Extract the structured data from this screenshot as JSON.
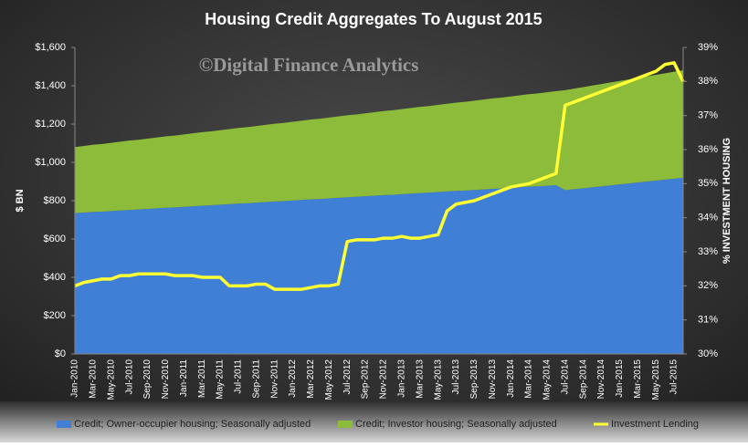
{
  "chart_data": {
    "type": "stacked-area-line",
    "title": "Housing Credit Aggregates To August 2015",
    "watermark": "©Digital Finance Analytics",
    "y_label": "$ BN",
    "y2_label": "% INVESTMENT HOUSING",
    "categories": [
      "Jan-2010",
      null,
      "Mar-2010",
      null,
      "May-2010",
      null,
      "Jul-2010",
      null,
      "Sep-2010",
      null,
      "Nov-2010",
      null,
      "Jan-2011",
      null,
      "Mar-2011",
      null,
      "May-2011",
      null,
      "Jul-2011",
      null,
      "Sep-2011",
      null,
      "Nov-2011",
      null,
      "Jan-2012",
      null,
      "Mar-2012",
      null,
      "May-2012",
      null,
      "Jul-2012",
      null,
      "Sep-2012",
      null,
      "Nov-2012",
      null,
      "Jan-2013",
      null,
      "Mar-2013",
      null,
      "May-2013",
      null,
      "Jul-2013",
      null,
      "Sep-2013",
      null,
      "Nov-2013",
      null,
      "Jan-2014",
      null,
      "Mar-2014",
      null,
      "May-2014",
      null,
      "Jul-2014",
      null,
      "Sep-2014",
      null,
      "Nov-2014",
      null,
      "Jan-2015",
      null,
      "Mar-2015",
      null,
      "May-2015",
      null,
      "Jul-2015",
      null
    ],
    "series": [
      {
        "name": "Credit; Owner-occupier housing; Seasonally adjusted",
        "color": "#3f7fd6",
        "kind": "area",
        "values": [
          735,
          738,
          741,
          743,
          746,
          749,
          752,
          754,
          757,
          760,
          763,
          765,
          768,
          771,
          774,
          776,
          779,
          782,
          785,
          787,
          790,
          793,
          796,
          798,
          801,
          804,
          807,
          809,
          812,
          815,
          818,
          820,
          823,
          826,
          829,
          831,
          834,
          837,
          840,
          842,
          845,
          848,
          851,
          853,
          856,
          859,
          862,
          864,
          867,
          870,
          873,
          875,
          878,
          881,
          855,
          860,
          865,
          870,
          875,
          880,
          885,
          890,
          895,
          900,
          905,
          910,
          915,
          920
        ]
      },
      {
        "name": "Credit; Investor housing; Seasonally adjusted",
        "color": "#8cbc3a",
        "kind": "area",
        "values": [
          345,
          348,
          351,
          353,
          356,
          359,
          362,
          364,
          367,
          370,
          373,
          375,
          378,
          381,
          384,
          386,
          389,
          392,
          395,
          397,
          400,
          403,
          406,
          408,
          411,
          414,
          417,
          419,
          422,
          425,
          428,
          430,
          433,
          436,
          439,
          441,
          444,
          447,
          450,
          452,
          455,
          458,
          461,
          463,
          466,
          469,
          472,
          474,
          477,
          480,
          483,
          485,
          488,
          491,
          522,
          525,
          528,
          531,
          534,
          537,
          540,
          543,
          546,
          549,
          552,
          555,
          558,
          561
        ]
      },
      {
        "name": "Investment Lending",
        "color": "#ffff33",
        "kind": "line",
        "axis": "y2",
        "values": [
          32.0,
          32.1,
          32.15,
          32.2,
          32.2,
          32.3,
          32.3,
          32.35,
          32.35,
          32.35,
          32.35,
          32.3,
          32.3,
          32.3,
          32.25,
          32.25,
          32.25,
          32.0,
          32.0,
          32.0,
          32.05,
          32.05,
          31.9,
          31.9,
          31.9,
          31.9,
          31.95,
          32.0,
          32.0,
          32.05,
          33.3,
          33.35,
          33.35,
          33.35,
          33.4,
          33.4,
          33.45,
          33.4,
          33.4,
          33.45,
          33.5,
          34.2,
          34.4,
          34.45,
          34.5,
          34.6,
          34.7,
          34.8,
          34.9,
          34.95,
          35.0,
          35.1,
          35.2,
          35.3,
          37.3,
          37.4,
          37.5,
          37.6,
          37.7,
          37.8,
          37.9,
          38.0,
          38.1,
          38.2,
          38.3,
          38.5,
          38.55,
          38.0
        ]
      }
    ],
    "ylim": [
      0,
      1600
    ],
    "yticks": [
      {
        "value": 0,
        "label": "$0"
      },
      {
        "value": 200,
        "label": "$200"
      },
      {
        "value": 400,
        "label": "$400"
      },
      {
        "value": 600,
        "label": "$600"
      },
      {
        "value": 800,
        "label": "$800"
      },
      {
        "value": 1000,
        "label": "$1,000"
      },
      {
        "value": 1200,
        "label": "$1,200"
      },
      {
        "value": 1400,
        "label": "$1,400"
      },
      {
        "value": 1600,
        "label": "$1,600"
      }
    ],
    "y2lim": [
      30,
      39
    ],
    "y2ticks": [
      {
        "value": 30,
        "label": "30%"
      },
      {
        "value": 31,
        "label": "31%"
      },
      {
        "value": 32,
        "label": "32%"
      },
      {
        "value": 33,
        "label": "33%"
      },
      {
        "value": 34,
        "label": "34%"
      },
      {
        "value": 35,
        "label": "35%"
      },
      {
        "value": 36,
        "label": "36%"
      },
      {
        "value": 37,
        "label": "37%"
      },
      {
        "value": 38,
        "label": "38%"
      },
      {
        "value": 39,
        "label": "39%"
      }
    ],
    "legend": "bottom"
  }
}
